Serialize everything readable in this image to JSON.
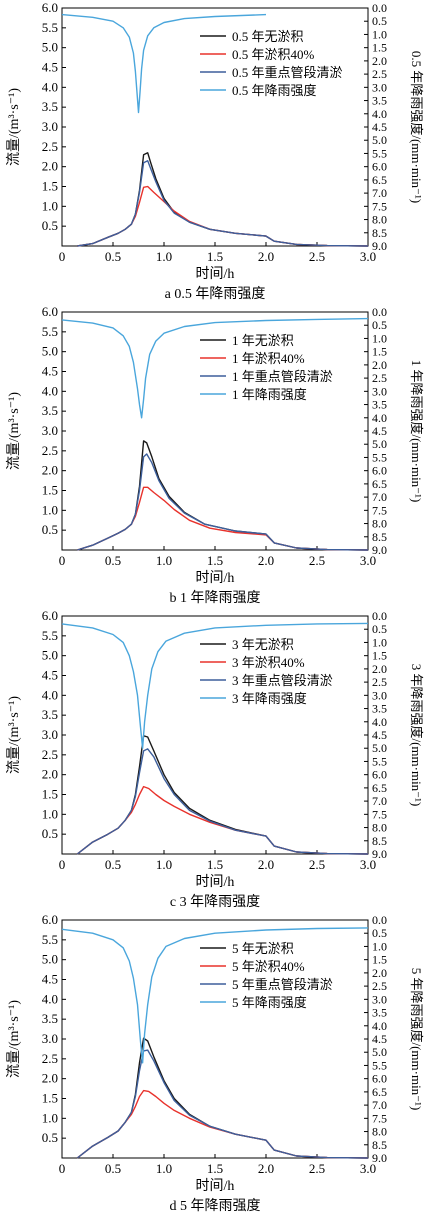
{
  "colors": {
    "no_silt": "#1a1a1a",
    "silt40": "#e8322c",
    "dredge": "#3d5f9c",
    "rain": "#4aa6dc"
  },
  "chart_data": [
    {
      "type": "line",
      "caption": "a 0.5 年降雨强度",
      "xlabel": "时间/h",
      "ylabel": "流量/(m³·s⁻¹)",
      "y2label": "0.5 年降雨强度/(mm·min⁻¹)",
      "xlim": [
        0,
        3.0
      ],
      "ylim": [
        0,
        6.0
      ],
      "y2lim": [
        9.0,
        0.0
      ],
      "xticks": [
        "0",
        "0.5",
        "1.0",
        "1.5",
        "2.0",
        "2.5",
        "3.0"
      ],
      "yticks": [
        "0.5",
        "1.0",
        "1.5",
        "2.0",
        "2.5",
        "3.0",
        "3.5",
        "4.0",
        "4.5",
        "5.0",
        "5.5",
        "6.0"
      ],
      "y2ticks": [
        "0.0",
        "0.5",
        "1.0",
        "1.5",
        "2.0",
        "2.5",
        "3.0",
        "3.5",
        "4.0",
        "4.5",
        "5.0",
        "5.5",
        "6.0",
        "6.5",
        "7.0",
        "7.5",
        "8.0",
        "8.5",
        "9.0"
      ],
      "legend_position": "top-right",
      "series": [
        {
          "name": "0.5 年无淤积",
          "axis": "left",
          "color_key": "no_silt",
          "x": [
            0.15,
            0.3,
            0.45,
            0.55,
            0.62,
            0.68,
            0.72,
            0.76,
            0.8,
            0.84,
            0.87,
            0.92,
            1.0,
            1.1,
            1.25,
            1.45,
            1.7,
            2.0,
            2.08,
            2.3,
            2.6,
            3.0
          ],
          "y": [
            0,
            0.06,
            0.22,
            0.32,
            0.42,
            0.55,
            0.8,
            1.4,
            2.3,
            2.35,
            2.1,
            1.7,
            1.2,
            0.85,
            0.6,
            0.42,
            0.32,
            0.25,
            0.12,
            0.04,
            0.01,
            0
          ]
        },
        {
          "name": "0.5 年淤积40%",
          "axis": "left",
          "color_key": "silt40",
          "x": [
            0.15,
            0.3,
            0.45,
            0.55,
            0.62,
            0.68,
            0.72,
            0.76,
            0.8,
            0.84,
            0.9,
            1.0,
            1.1,
            1.25,
            1.45,
            1.7,
            2.0,
            2.08,
            2.3,
            2.6,
            3.0
          ],
          "y": [
            0,
            0.06,
            0.22,
            0.32,
            0.42,
            0.55,
            0.75,
            1.1,
            1.48,
            1.5,
            1.35,
            1.12,
            0.88,
            0.62,
            0.42,
            0.32,
            0.25,
            0.12,
            0.04,
            0.01,
            0
          ]
        },
        {
          "name": "0.5 年重点管段清淤",
          "axis": "left",
          "color_key": "dredge",
          "x": [
            0.15,
            0.3,
            0.45,
            0.55,
            0.62,
            0.68,
            0.72,
            0.76,
            0.8,
            0.84,
            0.87,
            0.92,
            1.0,
            1.1,
            1.25,
            1.45,
            1.7,
            2.0,
            2.08,
            2.3,
            2.6,
            3.0
          ],
          "y": [
            0,
            0.06,
            0.22,
            0.32,
            0.42,
            0.55,
            0.8,
            1.35,
            2.1,
            2.15,
            1.95,
            1.62,
            1.15,
            0.83,
            0.6,
            0.42,
            0.32,
            0.25,
            0.12,
            0.04,
            0.01,
            0
          ]
        },
        {
          "name": "0.5 年降雨强度",
          "axis": "right",
          "color_key": "rain",
          "x": [
            0,
            0.3,
            0.5,
            0.6,
            0.66,
            0.7,
            0.72,
            0.735,
            0.75,
            0.765,
            0.78,
            0.8,
            0.84,
            0.9,
            1.0,
            1.2,
            1.5,
            2.0
          ],
          "y": [
            0.25,
            0.35,
            0.5,
            0.75,
            1.1,
            1.7,
            2.4,
            3.2,
            3.95,
            3.2,
            2.3,
            1.6,
            1.05,
            0.75,
            0.55,
            0.4,
            0.32,
            0.25
          ]
        }
      ]
    },
    {
      "type": "line",
      "caption": "b 1 年降雨强度",
      "xlabel": "时间/h",
      "ylabel": "流量/(m³·s⁻¹)",
      "y2label": "1 年降雨强度/(mm·min⁻¹)",
      "xlim": [
        0,
        3.0
      ],
      "ylim": [
        0,
        6.0
      ],
      "y2lim": [
        9.0,
        0.0
      ],
      "xticks": [
        "0",
        "0.5",
        "1.0",
        "1.5",
        "2.0",
        "2.5",
        "3.0"
      ],
      "yticks": [
        "0.5",
        "1.0",
        "1.5",
        "2.0",
        "2.5",
        "3.0",
        "3.5",
        "4.0",
        "4.5",
        "5.0",
        "5.5",
        "6.0"
      ],
      "y2ticks": [
        "0.0",
        "0.5",
        "1.0",
        "1.5",
        "2.0",
        "2.5",
        "3.0",
        "3.5",
        "4.0",
        "4.5",
        "5.0",
        "5.5",
        "6.0",
        "6.5",
        "7.0",
        "7.5",
        "8.0",
        "8.5",
        "9.0"
      ],
      "legend_position": "top-right",
      "series": [
        {
          "name": "1 年无淤积",
          "axis": "left",
          "color_key": "no_silt",
          "x": [
            0.15,
            0.3,
            0.45,
            0.55,
            0.62,
            0.68,
            0.72,
            0.76,
            0.8,
            0.83,
            0.88,
            0.95,
            1.05,
            1.2,
            1.4,
            1.7,
            2.0,
            2.08,
            2.3,
            2.6,
            3.0
          ],
          "y": [
            0,
            0.12,
            0.3,
            0.42,
            0.52,
            0.65,
            0.9,
            1.6,
            2.75,
            2.7,
            2.35,
            1.8,
            1.35,
            0.95,
            0.65,
            0.48,
            0.4,
            0.18,
            0.05,
            0.01,
            0
          ]
        },
        {
          "name": "1 年淤积40%",
          "axis": "left",
          "color_key": "silt40",
          "x": [
            0.15,
            0.3,
            0.45,
            0.55,
            0.62,
            0.68,
            0.72,
            0.76,
            0.8,
            0.84,
            0.9,
            1.0,
            1.1,
            1.25,
            1.45,
            1.7,
            2.0,
            2.08,
            2.3,
            2.6,
            3.0
          ],
          "y": [
            0,
            0.12,
            0.3,
            0.42,
            0.52,
            0.65,
            0.85,
            1.2,
            1.58,
            1.58,
            1.45,
            1.25,
            1.02,
            0.75,
            0.55,
            0.44,
            0.38,
            0.18,
            0.05,
            0.01,
            0
          ]
        },
        {
          "name": "1 年重点管段清淤",
          "axis": "left",
          "color_key": "dredge",
          "x": [
            0.15,
            0.3,
            0.45,
            0.55,
            0.62,
            0.68,
            0.72,
            0.76,
            0.8,
            0.83,
            0.88,
            0.95,
            1.05,
            1.2,
            1.4,
            1.7,
            2.0,
            2.08,
            2.3,
            2.6,
            3.0
          ],
          "y": [
            0,
            0.12,
            0.3,
            0.42,
            0.52,
            0.65,
            0.9,
            1.5,
            2.35,
            2.42,
            2.2,
            1.75,
            1.3,
            0.93,
            0.65,
            0.48,
            0.4,
            0.18,
            0.05,
            0.01,
            0
          ]
        },
        {
          "name": "1 年降雨强度",
          "axis": "right",
          "color_key": "rain",
          "x": [
            0,
            0.3,
            0.5,
            0.6,
            0.66,
            0.7,
            0.74,
            0.76,
            0.78,
            0.8,
            0.82,
            0.86,
            0.92,
            1.0,
            1.2,
            1.5,
            2.0,
            2.5,
            3.0
          ],
          "y": [
            0.3,
            0.42,
            0.6,
            0.9,
            1.3,
            1.9,
            2.9,
            3.5,
            4.0,
            3.3,
            2.5,
            1.6,
            1.1,
            0.8,
            0.55,
            0.4,
            0.32,
            0.28,
            0.25
          ]
        }
      ]
    },
    {
      "type": "line",
      "caption": "c 3 年降雨强度",
      "xlabel": "时间/h",
      "ylabel": "流量/(m³·s⁻¹)",
      "y2label": "3 年降雨强度/(mm·min⁻¹)",
      "xlim": [
        0,
        3.0
      ],
      "ylim": [
        0,
        6.0
      ],
      "y2lim": [
        9.0,
        0.0
      ],
      "xticks": [
        "0",
        "0.5",
        "1.0",
        "1.5",
        "2.0",
        "2.5",
        "3.0"
      ],
      "yticks": [
        "0.5",
        "1.0",
        "1.5",
        "2.0",
        "2.5",
        "3.0",
        "3.5",
        "4.0",
        "4.5",
        "5.0",
        "5.5",
        "6.0"
      ],
      "y2ticks": [
        "0.0",
        "0.5",
        "1.0",
        "1.5",
        "2.0",
        "2.5",
        "3.0",
        "3.5",
        "4.0",
        "4.5",
        "5.0",
        "5.5",
        "6.0",
        "6.5",
        "7.0",
        "7.5",
        "8.0",
        "8.5",
        "9.0"
      ],
      "legend_position": "top-right",
      "series": [
        {
          "name": "3 年无淤积",
          "axis": "left",
          "color_key": "no_silt",
          "x": [
            0.15,
            0.3,
            0.45,
            0.55,
            0.62,
            0.68,
            0.72,
            0.76,
            0.8,
            0.84,
            0.9,
            1.0,
            1.1,
            1.25,
            1.45,
            1.7,
            2.0,
            2.08,
            2.3,
            2.6,
            3.0
          ],
          "y": [
            0,
            0.3,
            0.5,
            0.65,
            0.85,
            1.1,
            1.5,
            2.2,
            2.98,
            2.95,
            2.6,
            2.0,
            1.55,
            1.15,
            0.85,
            0.62,
            0.45,
            0.2,
            0.05,
            0.01,
            0
          ]
        },
        {
          "name": "3 年淤积40%",
          "axis": "left",
          "color_key": "silt40",
          "x": [
            0.15,
            0.3,
            0.45,
            0.55,
            0.62,
            0.68,
            0.72,
            0.76,
            0.8,
            0.85,
            0.92,
            1.0,
            1.1,
            1.25,
            1.45,
            1.7,
            2.0,
            2.08,
            2.3,
            2.6,
            3.0
          ],
          "y": [
            0,
            0.3,
            0.5,
            0.65,
            0.85,
            1.05,
            1.25,
            1.5,
            1.7,
            1.65,
            1.5,
            1.35,
            1.2,
            1.0,
            0.8,
            0.6,
            0.45,
            0.2,
            0.05,
            0.01,
            0
          ]
        },
        {
          "name": "3 年重点管段清淤",
          "axis": "left",
          "color_key": "dredge",
          "x": [
            0.15,
            0.3,
            0.45,
            0.55,
            0.62,
            0.68,
            0.72,
            0.76,
            0.8,
            0.84,
            0.9,
            1.0,
            1.1,
            1.25,
            1.45,
            1.7,
            2.0,
            2.08,
            2.3,
            2.6,
            3.0
          ],
          "y": [
            0,
            0.3,
            0.5,
            0.65,
            0.85,
            1.1,
            1.45,
            2.05,
            2.6,
            2.65,
            2.45,
            1.9,
            1.5,
            1.1,
            0.83,
            0.6,
            0.45,
            0.2,
            0.05,
            0.01,
            0
          ]
        },
        {
          "name": "3 年降雨强度",
          "axis": "right",
          "color_key": "rain",
          "x": [
            0,
            0.3,
            0.5,
            0.6,
            0.66,
            0.7,
            0.74,
            0.77,
            0.79,
            0.81,
            0.84,
            0.88,
            0.94,
            1.02,
            1.2,
            1.5,
            2.0,
            2.5,
            3.0
          ],
          "y": [
            0.3,
            0.45,
            0.7,
            1.0,
            1.5,
            2.1,
            3.0,
            4.2,
            5.0,
            4.0,
            3.0,
            2.0,
            1.35,
            0.95,
            0.65,
            0.45,
            0.35,
            0.3,
            0.28
          ]
        }
      ]
    },
    {
      "type": "line",
      "caption": "d 5 年降雨强度",
      "xlabel": "时间/h",
      "ylabel": "流量/(m³·s⁻¹)",
      "y2label": "5 年降雨强度/(mm·min⁻¹)",
      "xlim": [
        0,
        3.0
      ],
      "ylim": [
        0,
        6.0
      ],
      "y2lim": [
        9.0,
        0.0
      ],
      "xticks": [
        "0",
        "0.5",
        "1.0",
        "1.5",
        "2.0",
        "2.5",
        "3.0"
      ],
      "yticks": [
        "0.5",
        "1.0",
        "1.5",
        "2.0",
        "2.5",
        "3.0",
        "3.5",
        "4.0",
        "4.5",
        "5.0",
        "5.5",
        "6.0"
      ],
      "y2ticks": [
        "0.0",
        "0.5",
        "1.0",
        "1.5",
        "2.0",
        "2.5",
        "3.0",
        "3.5",
        "4.0",
        "4.5",
        "5.0",
        "5.5",
        "6.0",
        "6.5",
        "7.0",
        "7.5",
        "8.0",
        "8.5",
        "9.0"
      ],
      "legend_position": "top-right",
      "series": [
        {
          "name": "5 年无淤积",
          "axis": "left",
          "color_key": "no_silt",
          "x": [
            0.15,
            0.3,
            0.45,
            0.55,
            0.62,
            0.68,
            0.72,
            0.76,
            0.8,
            0.84,
            0.9,
            1.0,
            1.1,
            1.25,
            1.45,
            1.7,
            2.0,
            2.08,
            2.3,
            2.6,
            3.0
          ],
          "y": [
            0,
            0.3,
            0.52,
            0.68,
            0.9,
            1.15,
            1.6,
            2.4,
            3.02,
            2.95,
            2.55,
            1.95,
            1.5,
            1.1,
            0.8,
            0.6,
            0.45,
            0.2,
            0.05,
            0.01,
            0
          ]
        },
        {
          "name": "5 年淤积40%",
          "axis": "left",
          "color_key": "silt40",
          "x": [
            0.15,
            0.3,
            0.45,
            0.55,
            0.62,
            0.68,
            0.72,
            0.76,
            0.8,
            0.85,
            0.92,
            1.0,
            1.1,
            1.25,
            1.45,
            1.7,
            2.0,
            2.08,
            2.3,
            2.6,
            3.0
          ],
          "y": [
            0,
            0.3,
            0.52,
            0.68,
            0.9,
            1.1,
            1.3,
            1.55,
            1.7,
            1.68,
            1.55,
            1.38,
            1.2,
            1.0,
            0.78,
            0.6,
            0.45,
            0.2,
            0.05,
            0.01,
            0
          ]
        },
        {
          "name": "5 年重点管段清淤",
          "axis": "left",
          "color_key": "dredge",
          "x": [
            0.15,
            0.3,
            0.45,
            0.55,
            0.62,
            0.68,
            0.72,
            0.76,
            0.8,
            0.84,
            0.9,
            1.0,
            1.1,
            1.25,
            1.45,
            1.7,
            2.0,
            2.08,
            2.3,
            2.6,
            3.0
          ],
          "y": [
            0,
            0.3,
            0.52,
            0.68,
            0.9,
            1.15,
            1.55,
            2.2,
            2.7,
            2.72,
            2.45,
            1.9,
            1.45,
            1.08,
            0.8,
            0.6,
            0.45,
            0.2,
            0.05,
            0.01,
            0
          ]
        },
        {
          "name": "5 年降雨强度",
          "axis": "right",
          "color_key": "rain",
          "x": [
            0,
            0.3,
            0.5,
            0.6,
            0.66,
            0.7,
            0.74,
            0.77,
            0.79,
            0.81,
            0.84,
            0.88,
            0.94,
            1.02,
            1.2,
            1.5,
            2.0,
            2.5,
            3.0
          ],
          "y": [
            0.35,
            0.5,
            0.75,
            1.05,
            1.55,
            2.2,
            3.2,
            4.6,
            5.4,
            4.3,
            3.2,
            2.15,
            1.45,
            1.0,
            0.7,
            0.5,
            0.38,
            0.32,
            0.3
          ]
        }
      ]
    }
  ]
}
